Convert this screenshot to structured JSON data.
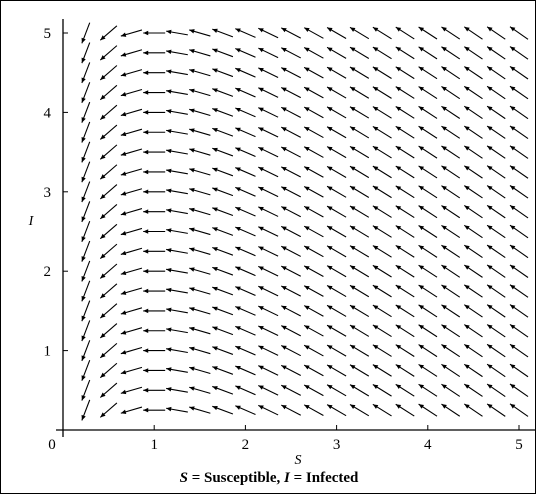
{
  "chart_data": {
    "type": "direction-field",
    "x_axis_label": "S",
    "y_axis_label": "I",
    "xlim": [
      0,
      5
    ],
    "ylim": [
      0,
      5
    ],
    "x_ticks": [
      "0",
      "1",
      "2",
      "3",
      "4",
      "5"
    ],
    "y_ticks": [
      "1",
      "2",
      "3",
      "4",
      "5"
    ],
    "grid": false,
    "arrow_color": "#000000",
    "caption": {
      "s_symbol": "S",
      "s_text": " = Susceptible,  ",
      "i_symbol": "I",
      "i_text": " = Infected"
    },
    "field": {
      "x_values": [
        0.25,
        0.5,
        0.75,
        1.0,
        1.25,
        1.5,
        1.75,
        2.0,
        2.25,
        2.5,
        2.75,
        3.0,
        3.25,
        3.5,
        3.75,
        4.0,
        4.25,
        4.5,
        4.75,
        5.0
      ],
      "y_values": [
        0.25,
        0.5,
        0.75,
        1.0,
        1.25,
        1.5,
        1.75,
        2.0,
        2.25,
        2.5,
        2.75,
        3.0,
        3.25,
        3.5,
        3.75,
        4.0,
        4.25,
        4.5,
        4.75,
        5.0
      ],
      "dS": "-S*I",
      "dI": "S*I - I"
    }
  }
}
